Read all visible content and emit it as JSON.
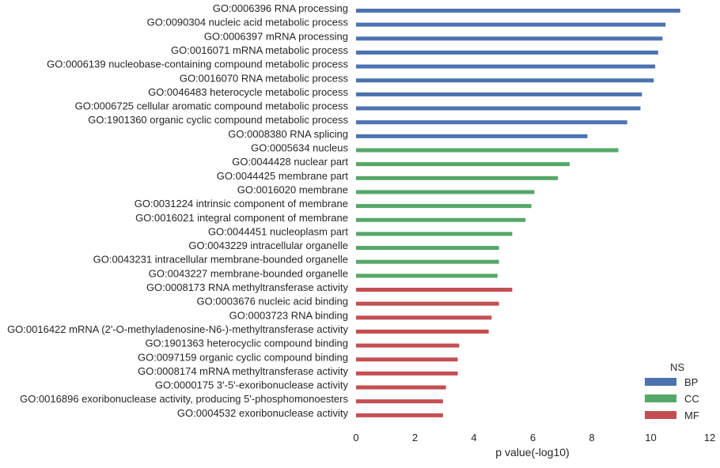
{
  "chart_data": {
    "type": "bar",
    "orientation": "horizontal",
    "title": "",
    "xlabel": "p value(-log10)",
    "ylabel": "",
    "xlim": [
      0,
      12
    ],
    "xticks": [
      0,
      2,
      4,
      6,
      8,
      10,
      12
    ],
    "grid": false,
    "legend": {
      "title": "NS",
      "placement": "lower-right",
      "entries": [
        {
          "name": "BP",
          "color": "#4c72b0"
        },
        {
          "name": "CC",
          "color": "#55a868"
        },
        {
          "name": "MF",
          "color": "#c44e52"
        }
      ]
    },
    "categories": [
      "GO:0006396 RNA processing",
      "GO:0090304 nucleic acid metabolic process",
      "GO:0006397 mRNA processing",
      "GO:0016071 mRNA metabolic process",
      "GO:0006139 nucleobase-containing compound metabolic process",
      "GO:0016070 RNA metabolic process",
      "GO:0046483 heterocycle metabolic process",
      "GO:0006725 cellular aromatic compound metabolic process",
      "GO:1901360 organic cyclic compound metabolic process",
      "GO:0008380 RNA splicing",
      "GO:0005634 nucleus",
      "GO:0044428 nuclear part",
      "GO:0044425 membrane part",
      "GO:0016020 membrane",
      "GO:0031224 intrinsic component of membrane",
      "GO:0016021 integral component of membrane",
      "GO:0044451 nucleoplasm part",
      "GO:0043229 intracellular organelle",
      "GO:0043231 intracellular membrane-bounded organelle",
      "GO:0043227 membrane-bounded organelle",
      "GO:0008173 RNA methyltransferase activity",
      "GO:0003676 nucleic acid binding",
      "GO:0003723 RNA binding",
      "GO:0016422 mRNA (2'-O-methyladenosine-N6-)-methyltransferase activity",
      "GO:1901363 heterocyclic compound binding",
      "GO:0097159 organic cyclic compound binding",
      "GO:0008174 mRNA methyltransferase activity",
      "GO:0000175 3'-5'-exoribonuclease activity",
      "GO:0016896 exoribonuclease activity, producing 5'-phosphomonoesters",
      "GO:0004532 exoribonuclease activity"
    ],
    "values": [
      11.0,
      10.5,
      10.4,
      10.25,
      10.15,
      10.1,
      9.7,
      9.65,
      9.2,
      7.85,
      8.9,
      7.25,
      6.85,
      6.05,
      5.95,
      5.75,
      5.3,
      4.85,
      4.85,
      4.8,
      5.3,
      4.85,
      4.6,
      4.5,
      3.5,
      3.45,
      3.45,
      3.05,
      2.95,
      2.95
    ],
    "groups": [
      "BP",
      "BP",
      "BP",
      "BP",
      "BP",
      "BP",
      "BP",
      "BP",
      "BP",
      "BP",
      "CC",
      "CC",
      "CC",
      "CC",
      "CC",
      "CC",
      "CC",
      "CC",
      "CC",
      "CC",
      "MF",
      "MF",
      "MF",
      "MF",
      "MF",
      "MF",
      "MF",
      "MF",
      "MF",
      "MF"
    ]
  }
}
